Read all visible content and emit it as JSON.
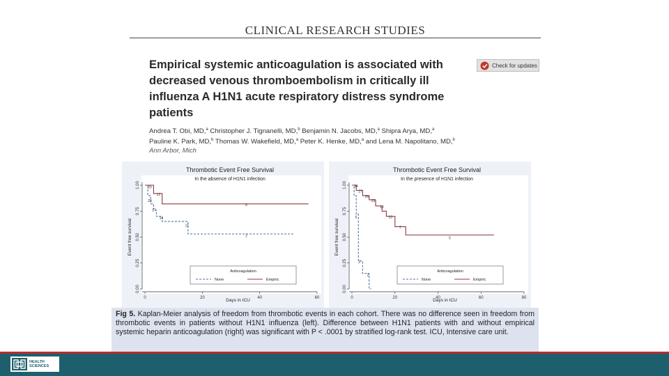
{
  "journal": "CLINICAL RESEARCH STUDIES",
  "title": "Empirical systemic anticoagulation is associated with decreased venous thromboembolism in critically ill influenza A H1N1 acute respiratory distress syndrome patients",
  "check_updates": "Check for updates",
  "authors": {
    "line1": [
      {
        "name": "Andrea T. Obi, MD,",
        "sup": "a"
      },
      {
        "name": " Christopher J. Tignanelli, MD,",
        "sup": "b"
      },
      {
        "name": " Benjamin N. Jacobs, MD,",
        "sup": "a"
      },
      {
        "name": " Shipra Arya, MD,",
        "sup": "a"
      }
    ],
    "line2": [
      {
        "name": "Pauline K. Park, MD,",
        "sup": "b"
      },
      {
        "name": " Thomas W. Wakefield, MD,",
        "sup": "a"
      },
      {
        "name": " Peter K. Henke, MD,",
        "sup": "a"
      },
      {
        "name": " and Lena M. Napolitano, MD,",
        "sup": "b"
      }
    ],
    "affiliation": "Ann Arbor, Mich"
  },
  "chart_data": [
    {
      "type": "line",
      "title": "Thrombotic Event Free Survival",
      "subtitle": "In the absence of H1N1 infection",
      "xlabel": "Days in ICU",
      "ylabel": "Event free survival",
      "xlim": [
        0,
        60
      ],
      "ylim": [
        0,
        1
      ],
      "xticks": [
        "0",
        "20",
        "40",
        "60"
      ],
      "yticks": [
        "0.00",
        "0.25",
        "0.50",
        "0.75",
        "1.00"
      ],
      "legend_title": "Anticoagulation",
      "series": [
        {
          "name": "None",
          "style": "dashed",
          "color": "#4a6fa5",
          "x": [
            0,
            1,
            1,
            2,
            2,
            3,
            3,
            4,
            4,
            6,
            6,
            15,
            15,
            52
          ],
          "y": [
            1.0,
            1.0,
            0.9,
            0.9,
            0.82,
            0.82,
            0.76,
            0.76,
            0.7,
            0.7,
            0.65,
            0.65,
            0.53,
            0.53
          ]
        },
        {
          "name": "Empiric",
          "style": "solid",
          "color": "#8b3a3a",
          "x": [
            0,
            3,
            3,
            6,
            6,
            57
          ],
          "y": [
            1.0,
            1.0,
            0.92,
            0.92,
            0.82,
            0.82
          ]
        }
      ],
      "at_risk_labels": [
        {
          "text": "29",
          "x": 1,
          "y": 0.97
        },
        {
          "text": "12",
          "x": 4,
          "y": 0.9
        },
        {
          "text": "6",
          "x": 35,
          "y": 0.8
        },
        {
          "text": "20",
          "x": 1,
          "y": 0.84
        },
        {
          "text": "17",
          "x": 2.5,
          "y": 0.75
        },
        {
          "text": "14",
          "x": 5,
          "y": 0.67
        },
        {
          "text": "11",
          "x": 14,
          "y": 0.6
        },
        {
          "text": "2",
          "x": 35,
          "y": 0.5
        }
      ]
    },
    {
      "type": "line",
      "title": "Thrombotic Event Free Survival",
      "subtitle": "In the presence of H1N1 infection",
      "xlabel": "Days in ICU",
      "ylabel": "Event free survival",
      "xlim": [
        0,
        80
      ],
      "ylim": [
        0,
        1
      ],
      "xticks": [
        "0",
        "20",
        "40",
        "60",
        "80"
      ],
      "yticks": [
        "0.00",
        "0.25",
        "0.50",
        "0.75",
        "1.00"
      ],
      "legend_title": "Anticoagulation",
      "series": [
        {
          "name": "None",
          "style": "dashed",
          "color": "#4a6fa5",
          "x": [
            0,
            1,
            1,
            2,
            2,
            3,
            3,
            5,
            5,
            8,
            8,
            9
          ],
          "y": [
            1.0,
            1.0,
            0.9,
            0.9,
            0.72,
            0.72,
            0.27,
            0.27,
            0.15,
            0.15,
            0.0,
            0.0
          ]
        },
        {
          "name": "Empiric",
          "style": "solid",
          "color": "#8b3a3a",
          "x": [
            0,
            2,
            2,
            5,
            5,
            8,
            8,
            11,
            11,
            14,
            14,
            16,
            16,
            20,
            20,
            25,
            25,
            66
          ],
          "y": [
            1.0,
            1.0,
            0.95,
            0.95,
            0.9,
            0.9,
            0.86,
            0.86,
            0.8,
            0.8,
            0.75,
            0.75,
            0.7,
            0.7,
            0.6,
            0.6,
            0.52,
            0.52
          ]
        }
      ],
      "at_risk_labels": [
        {
          "text": "34",
          "x": 1,
          "y": 0.98
        },
        {
          "text": "27",
          "x": 3,
          "y": 0.93
        },
        {
          "text": "26",
          "x": 6,
          "y": 0.88
        },
        {
          "text": "23",
          "x": 9,
          "y": 0.84
        },
        {
          "text": "18",
          "x": 13,
          "y": 0.78
        },
        {
          "text": "10",
          "x": 17,
          "y": 0.68
        },
        {
          "text": "7",
          "x": 22,
          "y": 0.58
        },
        {
          "text": "5",
          "x": 45,
          "y": 0.48
        },
        {
          "text": "6",
          "x": 1.5,
          "y": 0.68
        },
        {
          "text": "2",
          "x": 3,
          "y": 0.25
        },
        {
          "text": "2",
          "x": 7,
          "y": 0.12
        }
      ]
    }
  ],
  "caption": {
    "label": "Fig 5.",
    "text": " Kaplan-Meier analysis of freedom from thrombotic events in each cohort. There was no difference seen in freedom from thrombotic events in patients without H1N1 influenza (left). Difference between H1N1 patients with and without empirical systemic heparin anticoagulation (right) was significant with P < .0001 by stratified log-rank test. ICU, Intensive care unit."
  },
  "footer": {
    "logo_line1": "HEALTH",
    "logo_line2": "SCIENCES",
    "brand_color": "#1d5f6c",
    "accent_color": "#b52f2f"
  }
}
